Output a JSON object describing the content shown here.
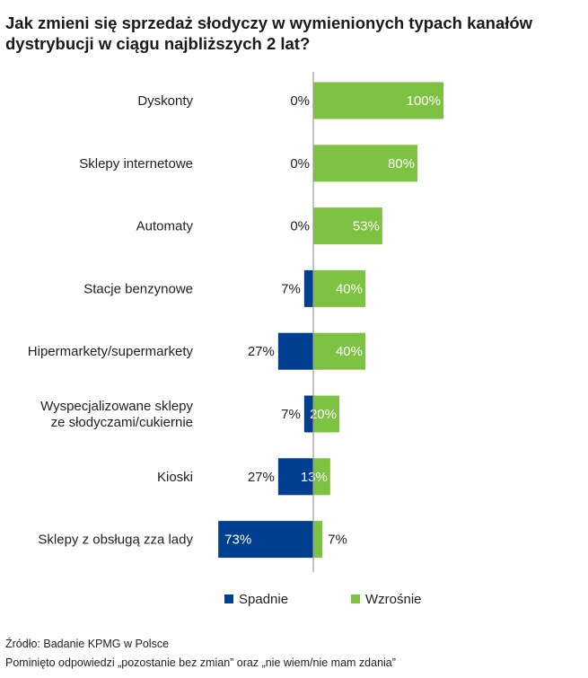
{
  "chart_data": {
    "type": "bar",
    "orientation": "horizontal-diverging",
    "title": "Jak zmieni się sprzedaż słodyczy w wymienionych typach kanałów dystrybucji w ciągu najbliższych 2 lat?",
    "categories": [
      "Dyskonty",
      "Sklepy internetowe",
      "Automaty",
      "Stacje benzynowe",
      "Hipermarkety/supermarkety",
      "Wyspecjalizowane sklepy\nze słodyczami/cukiernie",
      "Kioski",
      "Sklepy z obsługą zza lady"
    ],
    "series": [
      {
        "name": "Spadnie",
        "color": "#003e8f",
        "values": [
          0,
          0,
          0,
          7,
          27,
          7,
          27,
          73
        ]
      },
      {
        "name": "Wzrośnie",
        "color": "#7dc242",
        "values": [
          100,
          80,
          53,
          40,
          40,
          20,
          13,
          7
        ]
      }
    ],
    "value_suffix": "%",
    "xlim": [
      -73,
      100
    ],
    "legend_position": "bottom"
  },
  "legend": {
    "items": [
      {
        "label": "Spadnie",
        "color": "#003e8f"
      },
      {
        "label": "Wzrośnie",
        "color": "#7dc242"
      }
    ]
  },
  "footer": {
    "source": "Źródło: Badanie KPMG w Polsce",
    "note": "Pominięto odpowiedzi „pozostanie bez zmian” oraz „nie wiem/nie mam zdania”"
  }
}
